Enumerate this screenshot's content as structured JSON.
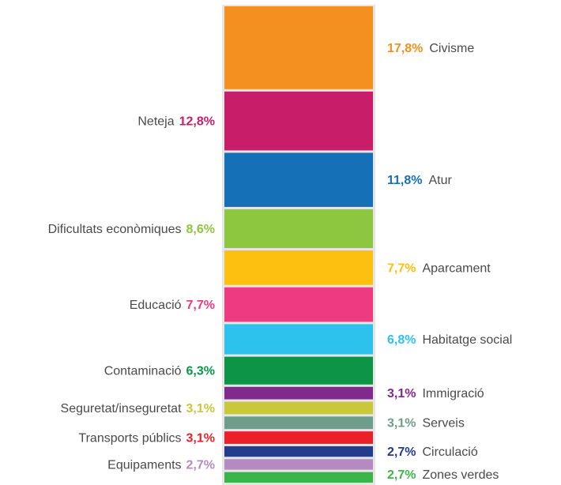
{
  "chart_data": {
    "type": "stacked-column",
    "categories": [
      "Civisme",
      "Neteja",
      "Atur",
      "Dificultats econòmiques",
      "Aparcament",
      "Educació",
      "Habitatge social",
      "Contaminació",
      "Immigració",
      "Seguretat/inseguretat",
      "Serveis",
      "Transports públics",
      "Circulació",
      "Equipaments",
      "Zones verdes"
    ],
    "values": [
      17.8,
      12.8,
      11.8,
      8.6,
      7.7,
      7.7,
      6.8,
      6.3,
      3.1,
      3.1,
      3.1,
      3.1,
      2.7,
      2.7,
      2.7
    ],
    "value_labels": [
      "17,8%",
      "12,8%",
      "11,8%",
      "8,6%",
      "7,7%",
      "7,7%",
      "6,8%",
      "6,3%",
      "3,1%",
      "3,1%",
      "3,1%",
      "3,1%",
      "2,7%",
      "2,7%",
      "2,7%"
    ],
    "colors": [
      "#f39020",
      "#c81e6a",
      "#1570b8",
      "#8dc63f",
      "#fdc010",
      "#ee3a7f",
      "#2dc2ee",
      "#0e9447",
      "#7f2a8c",
      "#c8c83a",
      "#6e9e8a",
      "#ec2027",
      "#233c8b",
      "#b58ac0",
      "#3bb54a"
    ]
  }
}
